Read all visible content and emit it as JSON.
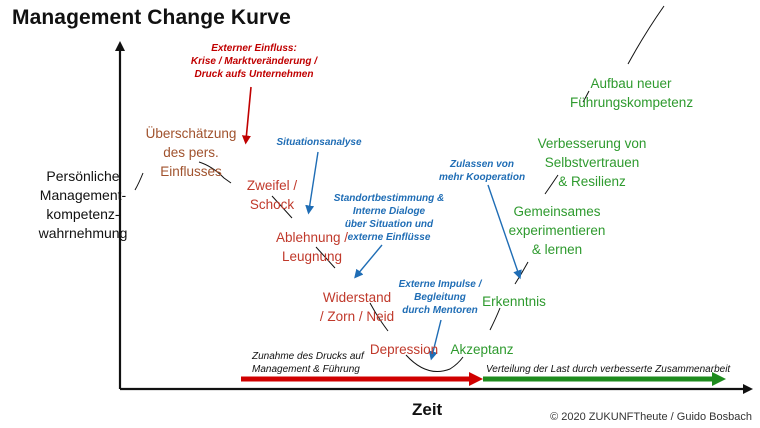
{
  "title": "Management Change Kurve",
  "y_axis_label": "Persönliche Management-kompetenz-wahrnehmung",
  "x_axis_label": "Zeit",
  "copyright": "© 2020 ZUKUNFTheute / Guido Bosbach",
  "colors": {
    "brown": "#a0522d",
    "red_stage": "#c0392b",
    "green_stage": "#2e9a2e",
    "note_red": "#c00000",
    "note_blue": "#1f6db5",
    "arrow_red": "#d00000",
    "arrow_green": "#1e8b1e"
  },
  "stages": {
    "ueberschaetzung": [
      "Überschätzung",
      "des pers.",
      "Einflusses"
    ],
    "zweifel": [
      "Zweifel /",
      "Schock"
    ],
    "ablehnung": [
      "Ablehnung /",
      "Leugnung"
    ],
    "widerstand": [
      "Widerstand",
      "/ Zorn / Neid"
    ],
    "depression": "Depression",
    "akzeptanz": "Akzeptanz",
    "erkenntnis": "Erkenntnis",
    "gemeinsames": [
      "Gemeinsames",
      "experimentieren",
      "& lernen"
    ],
    "verbesserung": [
      "Verbesserung von",
      "Selbstvertrauen",
      "& Resilienz"
    ],
    "aufbau": [
      "Aufbau neuer",
      "Führungskompetenz"
    ]
  },
  "notes": {
    "externer_einfluss": [
      "Externer Einfluss:",
      "Krise / Marktveränderung /",
      "Druck aufs Unternehmen"
    ],
    "situationsanalyse": "Situationsanalyse",
    "standortbestimmung": [
      "Standortbestimmung &",
      "Interne Dialoge",
      "über Situation und",
      "externe Einflüsse"
    ],
    "zulassen": [
      "Zulassen von",
      "mehr Kooperation"
    ],
    "externe_impulse": [
      "Externe Impulse /",
      "Begleitung",
      "durch Mentoren"
    ]
  },
  "bottom_notes": {
    "druck": [
      "Zunahme des Drucks auf",
      "Management & Führung"
    ],
    "verteilung": "Verteilung der Last durch verbesserte Zusammenarbeit"
  }
}
